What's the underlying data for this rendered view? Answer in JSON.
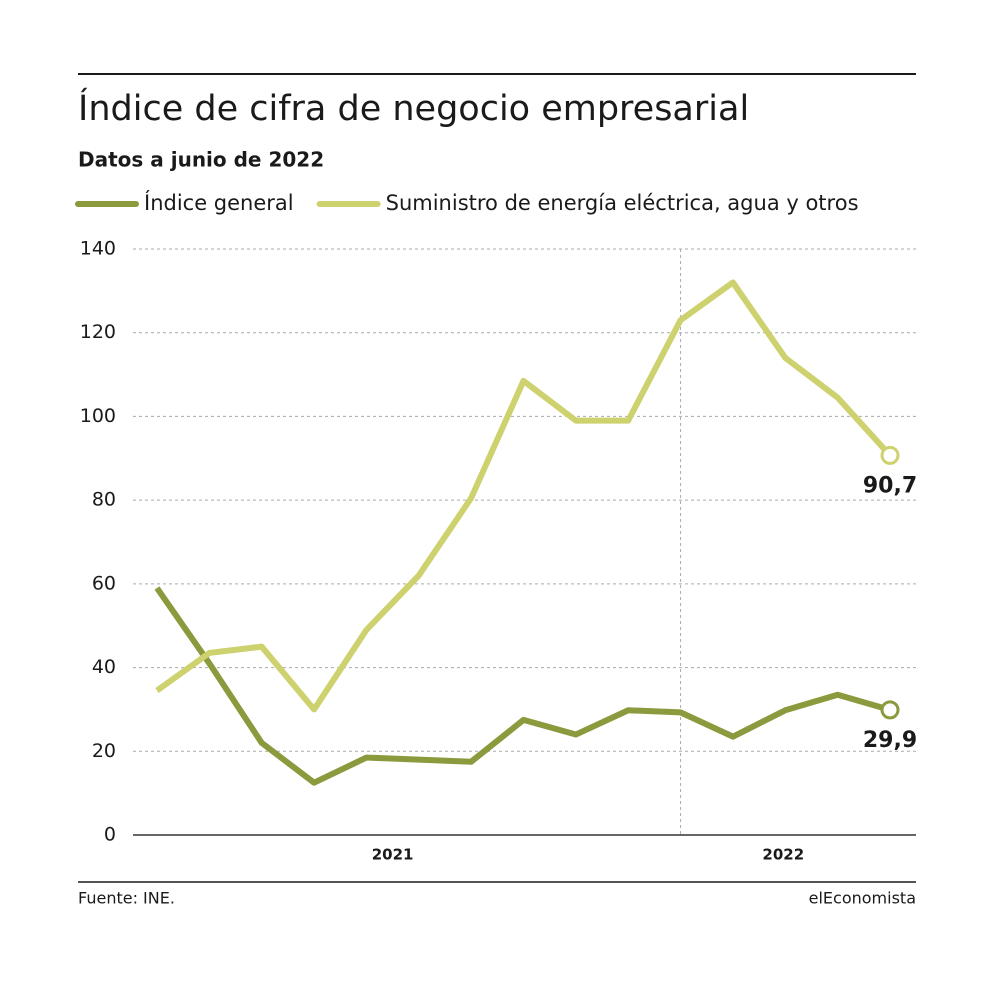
{
  "chart_data": {
    "type": "line",
    "title": "Índice de cifra de negocio empresarial",
    "subtitle": "Datos a junio de 2022",
    "categories": [
      null,
      null,
      null,
      null,
      null,
      null,
      null,
      null,
      null,
      null,
      null,
      null,
      null,
      null,
      null
    ],
    "year_groups": [
      {
        "label": "2021",
        "start": 0
      },
      {
        "label": "2022",
        "start": 10
      }
    ],
    "series": [
      {
        "name": "Índice general",
        "color": "#8a9a3c",
        "values": [
          59,
          41,
          22,
          12.5,
          18.5,
          18,
          17.5,
          27.5,
          24,
          29.8,
          29.3,
          23.5,
          29.8,
          33.5,
          29.9
        ],
        "value_labels": [
          null,
          null,
          null,
          null,
          null,
          null,
          null,
          null,
          null,
          null,
          null,
          null,
          null,
          null,
          "29,9"
        ]
      },
      {
        "name": "Suministro de energía eléctrica, agua y otros",
        "color": "#cdd16e",
        "values": [
          34.5,
          43.5,
          45,
          30,
          49,
          62,
          80.5,
          108.5,
          99,
          99,
          123,
          132,
          114,
          104.5,
          90.7
        ],
        "value_labels": [
          null,
          null,
          null,
          null,
          null,
          null,
          null,
          null,
          null,
          null,
          null,
          null,
          null,
          null,
          "90,7"
        ]
      }
    ],
    "ylim": [
      0,
      140
    ],
    "yticks": [
      0,
      20,
      40,
      60,
      80,
      100,
      120,
      140
    ],
    "grid": true,
    "source": "Fuente: INE.",
    "brand": "elEconomista"
  }
}
